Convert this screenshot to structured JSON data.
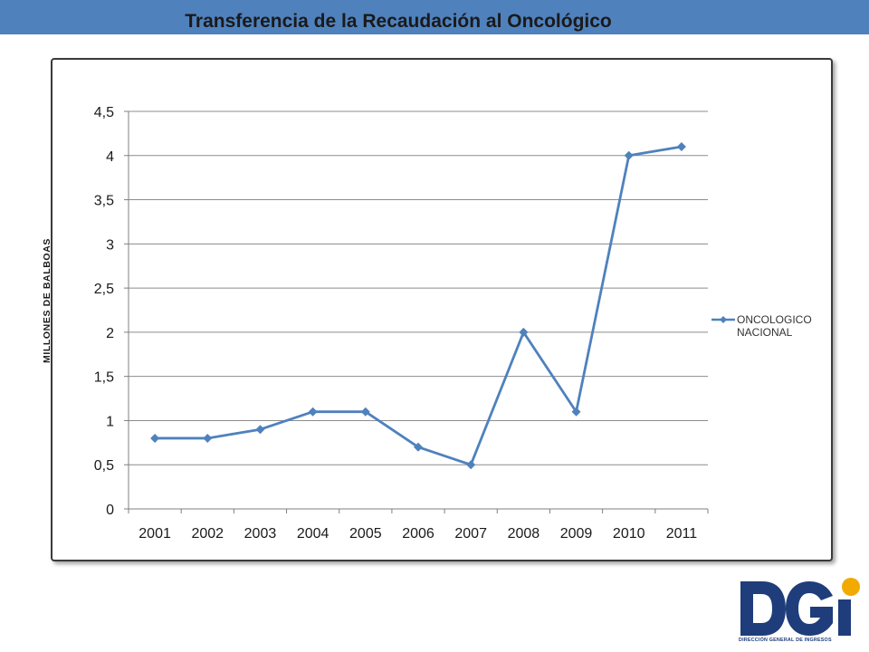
{
  "chart_data": {
    "type": "line",
    "title": "Transferencia de la Recaudación al Oncológico",
    "ylabel": "MILLONES DE BALBOAS",
    "xlabel": "",
    "ylim": [
      0,
      4.5
    ],
    "y_ticks": [
      "0",
      "0,5",
      "1",
      "1,5",
      "2",
      "2,5",
      "3",
      "3,5",
      "4",
      "4,5"
    ],
    "y_tick_values": [
      0,
      0.5,
      1,
      1.5,
      2,
      2.5,
      3,
      3.5,
      4,
      4.5
    ],
    "grid": "horizontal",
    "legend_position": "right",
    "categories": [
      "2001",
      "2002",
      "2003",
      "2004",
      "2005",
      "2006",
      "2007",
      "2008",
      "2009",
      "2010",
      "2011"
    ],
    "series": [
      {
        "name": "ONCOLOGICO NACIONAL",
        "color": "#4f81bd",
        "marker": "diamond",
        "values": [
          0.8,
          0.8,
          0.9,
          1.1,
          1.1,
          0.7,
          0.5,
          2.0,
          1.1,
          4.0,
          4.1
        ]
      }
    ]
  },
  "legend": {
    "line1": "ONCOLOGICO",
    "line2": "NACIONAL"
  },
  "logo": {
    "caption": "DIRECCIÓN GENERAL DE INGRESOS",
    "brand_color": "#1f3d7a",
    "accent_color": "#f2a900"
  },
  "colors": {
    "header_band": "#4f81bd",
    "grid": "#8c8c8c"
  }
}
